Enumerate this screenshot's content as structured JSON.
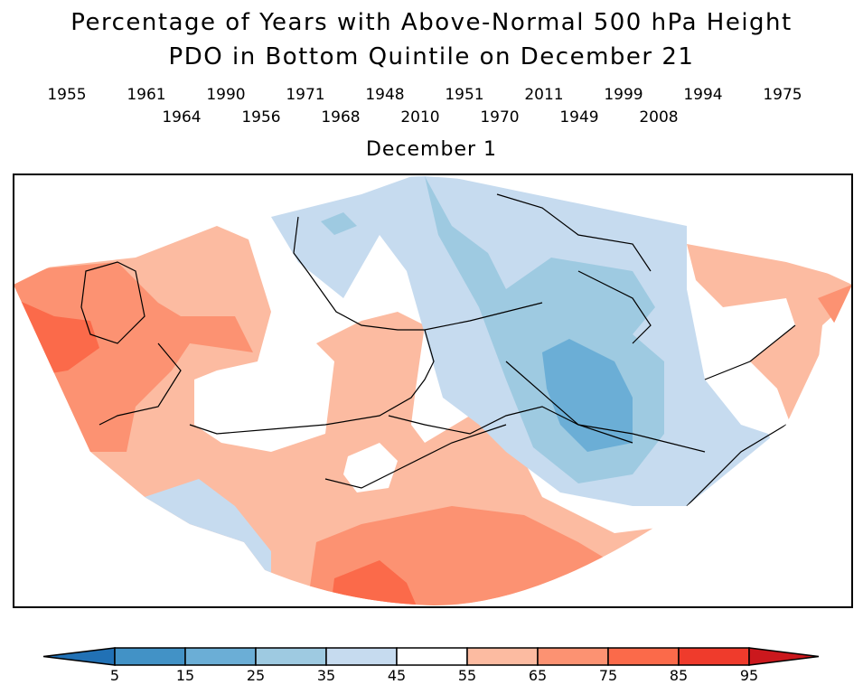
{
  "title_line1": "Percentage of Years with Above-Normal 500 hPa Height",
  "title_line2": "PDO in Bottom Quintile on December 21",
  "years_row1": [
    "1955",
    "1961",
    "1990",
    "1971",
    "1948",
    "1951",
    "2011",
    "1999",
    "1994",
    "1975"
  ],
  "years_row2": [
    "1964",
    "1956",
    "1968",
    "2010",
    "1970",
    "1949",
    "2008"
  ],
  "subtitle": "December 1",
  "colorbar": {
    "labels": [
      "5",
      "15",
      "25",
      "35",
      "45",
      "55",
      "65",
      "75",
      "85",
      "95"
    ],
    "colors": [
      "#2171b5",
      "#4292c6",
      "#6baed6",
      "#9ecae1",
      "#c6dbef",
      "#ffffff",
      "#fcbba1",
      "#fc9272",
      "#fb6a4a",
      "#ef3b2c",
      "#cb181d"
    ]
  }
}
